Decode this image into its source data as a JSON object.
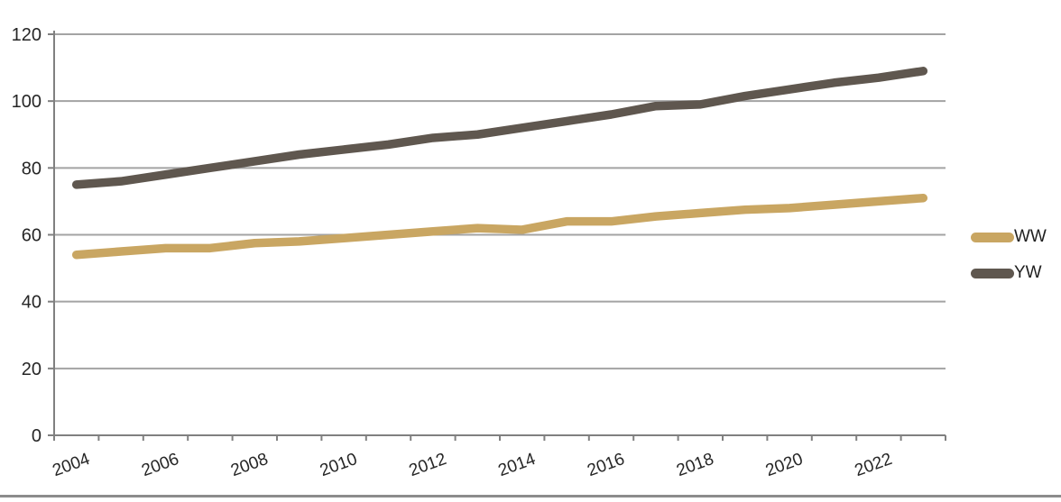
{
  "chart_data": {
    "type": "line",
    "title": "",
    "xlabel": "",
    "ylabel": "",
    "x": [
      2004,
      2005,
      2006,
      2007,
      2008,
      2009,
      2010,
      2011,
      2012,
      2013,
      2014,
      2015,
      2016,
      2017,
      2018,
      2019,
      2020,
      2021,
      2022,
      2023
    ],
    "x_tick_labels": [
      "2004",
      "2006",
      "2008",
      "2010",
      "2012",
      "2014",
      "2016",
      "2018",
      "2020",
      "2022"
    ],
    "y_tick_labels": [
      "0",
      "20",
      "40",
      "60",
      "80",
      "100",
      "120"
    ],
    "ylim": [
      0,
      120
    ],
    "ytick_step": 20,
    "grid": true,
    "legend_position": "right-middle",
    "series": [
      {
        "name": "WW",
        "color": "#C9A662",
        "values": [
          54,
          55,
          56,
          56,
          57.5,
          58,
          59,
          60,
          61,
          62,
          61.5,
          64,
          64,
          65.5,
          66.5,
          67.5,
          68,
          69,
          70,
          71
        ]
      },
      {
        "name": "YW",
        "color": "#5F574F",
        "values": [
          75,
          76,
          78,
          80,
          82,
          84,
          85.5,
          87,
          89,
          90,
          92,
          94,
          96,
          98.5,
          99,
          101.5,
          103.5,
          105.5,
          107,
          109
        ]
      }
    ],
    "style": {
      "grid_color": "#A3A3A3",
      "axis_color": "#808080",
      "text_color": "#262626",
      "line_width": 9.5,
      "background": "#FFFFFF"
    }
  }
}
